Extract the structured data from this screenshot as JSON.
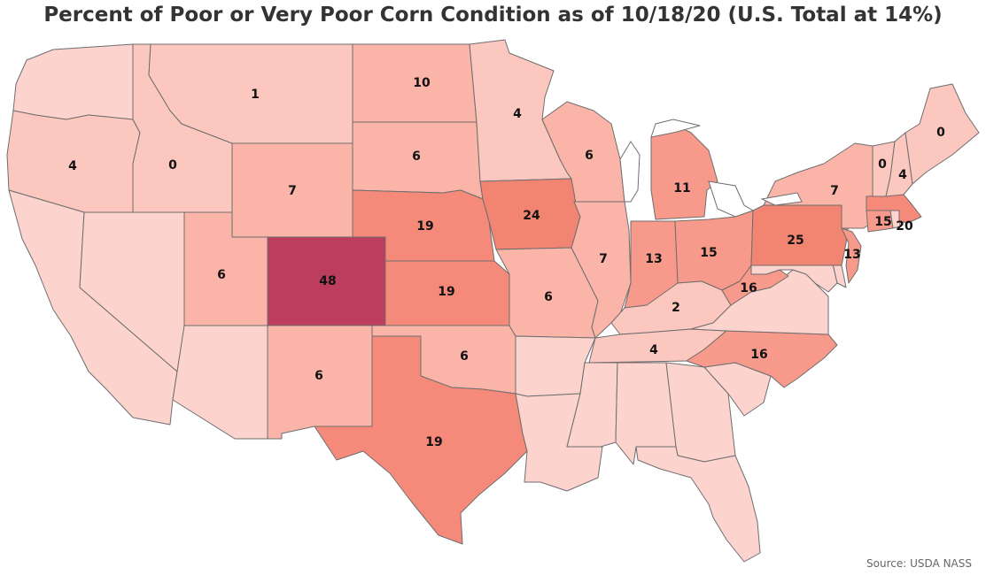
{
  "title": "Percent of Poor or Very Poor Corn Condition as of 10/18/20 (U.S. Total at 14%)",
  "source": "Source: USDA NASS",
  "colors": {
    "background": "#ffffff",
    "border": "#6e6e6e",
    "scale": [
      "#fdd3ce",
      "#fcc7bf",
      "#fbb4a8",
      "#f89a8b",
      "#f58a7a",
      "#f28472",
      "#bd3d5e"
    ]
  },
  "states": [
    {
      "id": "WA",
      "value": null
    },
    {
      "id": "OR",
      "value": 4
    },
    {
      "id": "CA",
      "value": null
    },
    {
      "id": "ID",
      "value": 0
    },
    {
      "id": "NV",
      "value": null
    },
    {
      "id": "MT",
      "value": 1
    },
    {
      "id": "WY",
      "value": 7
    },
    {
      "id": "UT",
      "value": 6
    },
    {
      "id": "AZ",
      "value": null
    },
    {
      "id": "CO",
      "value": 48
    },
    {
      "id": "NM",
      "value": 6
    },
    {
      "id": "ND",
      "value": 10
    },
    {
      "id": "SD",
      "value": 6
    },
    {
      "id": "NE",
      "value": 19
    },
    {
      "id": "KS",
      "value": 19
    },
    {
      "id": "OK",
      "value": 6
    },
    {
      "id": "TX",
      "value": 19
    },
    {
      "id": "MN",
      "value": 4
    },
    {
      "id": "IA",
      "value": 24
    },
    {
      "id": "MO",
      "value": 6
    },
    {
      "id": "AR",
      "value": null
    },
    {
      "id": "LA",
      "value": null
    },
    {
      "id": "WI",
      "value": 6
    },
    {
      "id": "IL",
      "value": 7
    },
    {
      "id": "MI",
      "value": 11
    },
    {
      "id": "IN",
      "value": 13
    },
    {
      "id": "OH",
      "value": 15
    },
    {
      "id": "KY",
      "value": 2
    },
    {
      "id": "TN",
      "value": 4
    },
    {
      "id": "MS",
      "value": null
    },
    {
      "id": "AL",
      "value": null
    },
    {
      "id": "GA",
      "value": null
    },
    {
      "id": "FL",
      "value": null
    },
    {
      "id": "SC",
      "value": null
    },
    {
      "id": "NC",
      "value": 16
    },
    {
      "id": "VA",
      "value": null
    },
    {
      "id": "WV",
      "value": 16
    },
    {
      "id": "MD",
      "value": null
    },
    {
      "id": "DE",
      "value": null
    },
    {
      "id": "PA",
      "value": 25
    },
    {
      "id": "NJ",
      "value": 13
    },
    {
      "id": "NY",
      "value": 7
    },
    {
      "id": "CT",
      "value": 15
    },
    {
      "id": "RI",
      "value": null
    },
    {
      "id": "MA",
      "value": 20
    },
    {
      "id": "VT",
      "value": 0
    },
    {
      "id": "NH",
      "value": 4
    },
    {
      "id": "ME",
      "value": 0
    }
  ]
}
